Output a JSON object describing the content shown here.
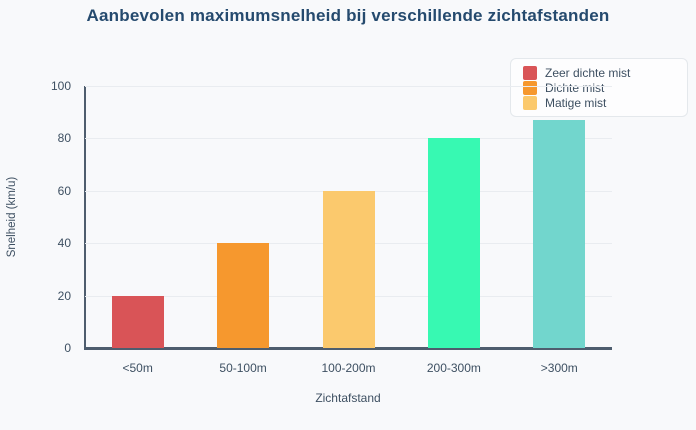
{
  "title": "Aanbevolen maximumsnelheid bij verschillende zichtafstanden",
  "chart_data": {
    "type": "bar",
    "title": "Aanbevolen maximumsnelheid bij verschillende zichtafstanden",
    "categories": [
      "<50m",
      "50-100m",
      "100-200m",
      "200-300m",
      ">300m"
    ],
    "values": [
      20,
      40,
      60,
      80,
      87
    ],
    "bar_colors": [
      "#d95457",
      "#f6982e",
      "#fbc96d",
      "#37f9b2",
      "#72d6cd"
    ],
    "xlabel": "Zichtafstand",
    "ylabel": "Snelheid (km/u)",
    "ylim": [
      0,
      100
    ],
    "yticks": [
      0,
      20,
      40,
      60,
      80,
      100
    ],
    "grid": true,
    "legend": {
      "position": "top-right",
      "entries": [
        {
          "label": "Zeer dichte mist",
          "color": "#d95457"
        },
        {
          "label": "Dichte mist",
          "color": "#f6982e"
        },
        {
          "label": "Matige mist",
          "color": "#fbc96d"
        }
      ]
    }
  },
  "colors": {
    "background": "#f8f9fb",
    "title": "#254a6e",
    "axis_line": "#4e5d6e",
    "grid": "#e9ecf0",
    "tick_label": "#3e5062",
    "legend_bg": "#fdfdfe",
    "legend_border": "#e4e8ec"
  }
}
